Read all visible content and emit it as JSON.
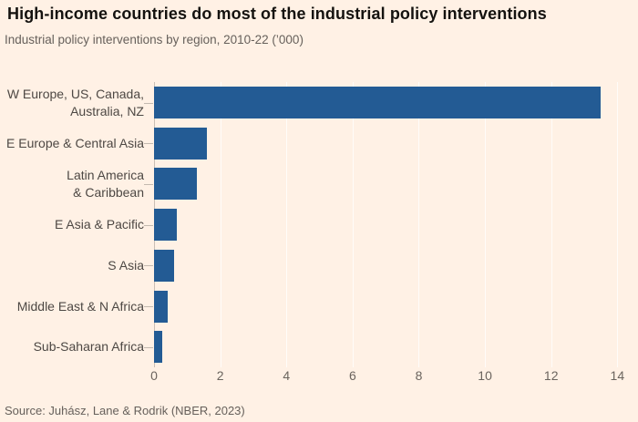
{
  "header": {
    "title": "High-income countries do most of the industrial policy interventions",
    "subtitle": "Industrial policy interventions by region, 2010-22 (’000)"
  },
  "footer": {
    "source": "Source: Juhász, Lane & Rodrik (NBER, 2023)"
  },
  "colors": {
    "background": "#FFF1E5",
    "bar": "#235B94",
    "title_text": "#14120F",
    "muted_text": "#66605B",
    "category_text": "#4D4844",
    "gridline": "rgba(255,255,255,0.75)",
    "zero_line": "#C9BFB5"
  },
  "chart_data": {
    "type": "bar",
    "orientation": "horizontal",
    "title": "High-income countries do most of the industrial policy interventions",
    "subtitle": "Industrial policy interventions by region, 2010-22 (’000)",
    "categories": [
      "W Europe, US, Canada, Australia, NZ",
      "E Europe & Central Asia",
      "Latin America & Caribbean",
      "E Asia & Pacific",
      "S Asia",
      "Middle East & N Africa",
      "Sub-Saharan Africa"
    ],
    "category_lines": [
      [
        "W Europe, US, Canada,",
        "Australia, NZ"
      ],
      [
        "E Europe & Central Asia"
      ],
      [
        "Latin America",
        "& Caribbean"
      ],
      [
        "E Asia & Pacific"
      ],
      [
        "S Asia"
      ],
      [
        "Middle East & N Africa"
      ],
      [
        "Sub-Saharan Africa"
      ]
    ],
    "values": [
      13.5,
      1.6,
      1.3,
      0.7,
      0.6,
      0.4,
      0.25
    ],
    "xlabel": "",
    "ylabel": "",
    "xlim": [
      0,
      14.35
    ],
    "xticks": [
      0,
      2,
      4,
      6,
      8,
      10,
      12,
      14
    ],
    "grid": true,
    "legend": false,
    "source": "Source: Juhász, Lane & Rodrik (NBER, 2023)"
  }
}
